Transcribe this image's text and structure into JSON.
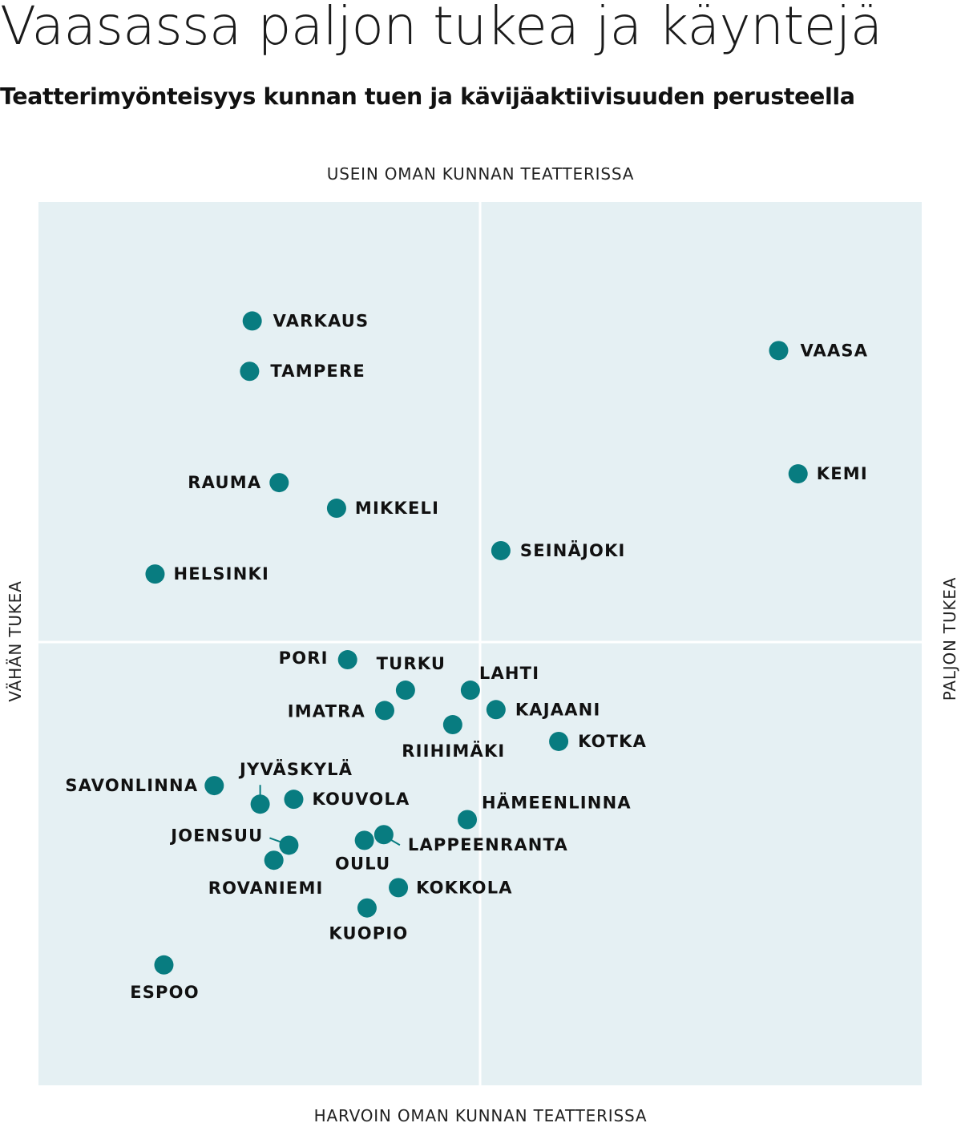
{
  "title": "Vaasassa paljon tukea ja käyntejä",
  "subtitle": "Teatterimyönteisyys kunnan tuen ja kävijäaktiivisuuden perusteella",
  "colors": {
    "background": "#e5f0f3",
    "dot": "#087c80",
    "divider": "#ffffff"
  },
  "chart_data": {
    "type": "scatter",
    "axes": {
      "top": "USEIN OMAN KUNNAN TEATTERISSA",
      "bottom": "HARVOIN OMAN KUNNAN TEATTERISSA",
      "left": "VÄHÄN TUKEA",
      "right": "PALJON TUKEA"
    },
    "xlim": [
      -1,
      1
    ],
    "ylim": [
      -1,
      1
    ],
    "grid": "quadrant-dividers",
    "points": [
      {
        "name": "VARKAUS",
        "x": -0.516,
        "y": 0.727
      },
      {
        "name": "TAMPERE",
        "x": -0.522,
        "y": 0.613
      },
      {
        "name": "VAASA",
        "x": 0.676,
        "y": 0.66
      },
      {
        "name": "KEMI",
        "x": 0.72,
        "y": 0.381
      },
      {
        "name": "RAUMA",
        "x": -0.455,
        "y": 0.361
      },
      {
        "name": "MIKKELI",
        "x": -0.325,
        "y": 0.303
      },
      {
        "name": "SEINÄJOKI",
        "x": 0.047,
        "y": 0.207
      },
      {
        "name": "HELSINKI",
        "x": -0.736,
        "y": 0.154
      },
      {
        "name": "PORI",
        "x": -0.3,
        "y": -0.04
      },
      {
        "name": "TURKU",
        "x": -0.169,
        "y": -0.109
      },
      {
        "name": "LAHTI",
        "x": -0.022,
        "y": -0.109
      },
      {
        "name": "IMATRA",
        "x": -0.216,
        "y": -0.155
      },
      {
        "name": "KAJAANI",
        "x": 0.036,
        "y": -0.153
      },
      {
        "name": "RIIHIMÄKI",
        "x": -0.062,
        "y": -0.187
      },
      {
        "name": "KOTKA",
        "x": 0.178,
        "y": -0.225
      },
      {
        "name": "SAVONLINNA",
        "x": -0.602,
        "y": -0.325
      },
      {
        "name": "JYVÄSKYLÄ",
        "x": -0.498,
        "y": -0.367
      },
      {
        "name": "KOUVOLA",
        "x": -0.422,
        "y": -0.356
      },
      {
        "name": "HÄMEENLINNA",
        "x": -0.029,
        "y": -0.402
      },
      {
        "name": "JOENSUU",
        "x": -0.433,
        "y": -0.46
      },
      {
        "name": "OULU",
        "x": -0.262,
        "y": -0.449
      },
      {
        "name": "LAPPEENRANTA",
        "x": -0.218,
        "y": -0.436
      },
      {
        "name": "ROVANIEMI",
        "x": -0.467,
        "y": -0.494
      },
      {
        "name": "KOKKOLA",
        "x": -0.185,
        "y": -0.556
      },
      {
        "name": "KUOPIO",
        "x": -0.256,
        "y": -0.602
      },
      {
        "name": "ESPOO",
        "x": -0.716,
        "y": -0.731
      }
    ]
  }
}
